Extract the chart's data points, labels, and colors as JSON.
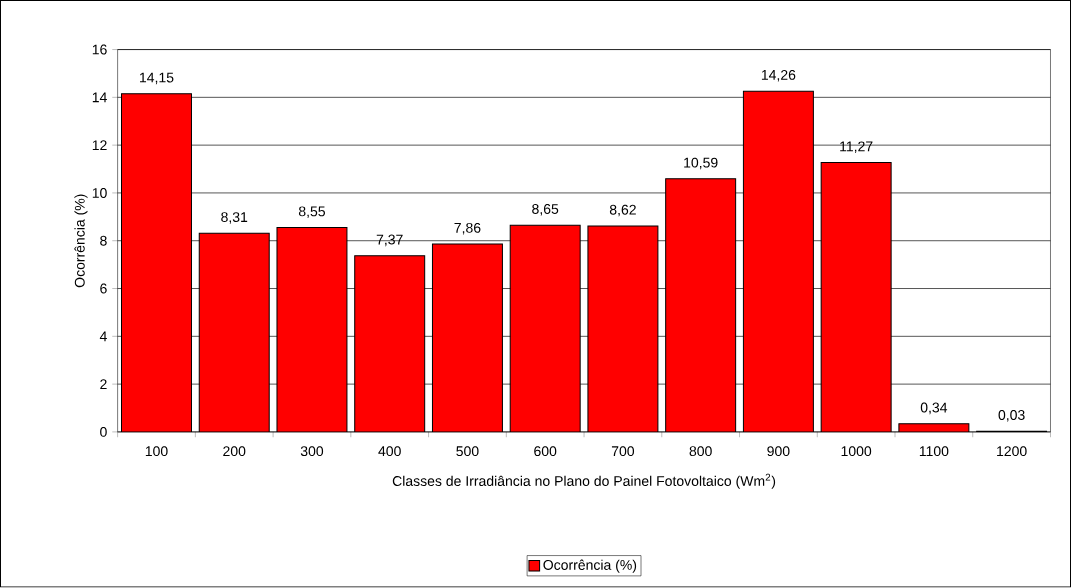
{
  "chart_data": {
    "type": "bar",
    "xlabel": "Classes de Irradiância no Plano do Painel Fotovoltaico (Wm$^{2}$)",
    "ylabel": "Ocorrência (%)",
    "categories": [
      "100",
      "200",
      "300",
      "400",
      "500",
      "600",
      "700",
      "800",
      "900",
      "1000",
      "1100",
      "1200"
    ],
    "series": [
      {
        "name": "Ocorrência (%)",
        "color": "#ff0000",
        "values": [
          14.15,
          8.31,
          8.55,
          7.37,
          7.86,
          8.65,
          8.62,
          10.59,
          14.26,
          11.27,
          0.34,
          0.03
        ],
        "value_labels": [
          "14,15",
          "8,31",
          "8,55",
          "7,37",
          "7,86",
          "8,65",
          "8,62",
          "10,59",
          "14,26",
          "11,27",
          "0,34",
          "0,03"
        ]
      }
    ],
    "ylim": [
      0,
      16
    ],
    "yticks": [
      0,
      2,
      4,
      6,
      8,
      10,
      12,
      14,
      16
    ],
    "grid": "y",
    "legend": "bottom"
  }
}
